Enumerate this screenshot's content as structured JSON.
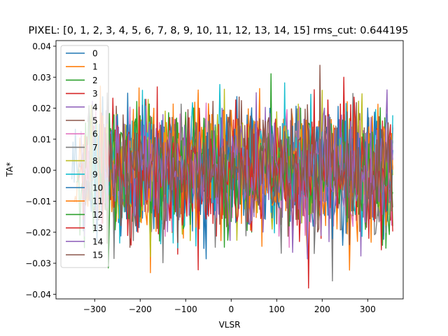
{
  "chart_data": {
    "type": "line",
    "title": "PIXEL: [0, 1, 2, 3, 4, 5, 6, 7, 8, 9, 10, 11, 12, 13, 14, 15]   rms_cut: 0.644195",
    "xlabel": "VLSR",
    "ylabel": "TA*",
    "xlim": [
      -385,
      378
    ],
    "ylim": [
      -0.0415,
      0.0418
    ],
    "x_ticks": [
      -300,
      -200,
      -100,
      0,
      100,
      200,
      300
    ],
    "x_tick_labels": [
      "−300",
      "−200",
      "−100",
      "0",
      "100",
      "200",
      "300"
    ],
    "y_ticks": [
      -0.04,
      -0.03,
      -0.02,
      -0.01,
      0.0,
      0.01,
      0.02,
      0.03,
      0.04
    ],
    "y_tick_labels": [
      "−0.04",
      "−0.03",
      "−0.02",
      "−0.01",
      "0.00",
      "0.01",
      "0.02",
      "0.03",
      "0.04"
    ],
    "grid": false,
    "legend_position": "upper-left",
    "x_range": [
      -350,
      355
    ],
    "noise_rms_approx": 0.0095,
    "series": [
      {
        "name": "0",
        "color": "#1f77b4",
        "x_start": -350,
        "x_end": 355
      },
      {
        "name": "1",
        "color": "#ff7f0e",
        "x_start": -345,
        "x_end": 355
      },
      {
        "name": "2",
        "color": "#2ca02c",
        "x_start": -340,
        "x_end": 355
      },
      {
        "name": "3",
        "color": "#d62728",
        "x_start": -335,
        "x_end": 355
      },
      {
        "name": "4",
        "color": "#9467bd",
        "x_start": -330,
        "x_end": 355
      },
      {
        "name": "5",
        "color": "#8c564b",
        "x_start": -325,
        "x_end": 355
      },
      {
        "name": "6",
        "color": "#e377c2",
        "x_start": -320,
        "x_end": 355
      },
      {
        "name": "7",
        "color": "#7f7f7f",
        "x_start": -315,
        "x_end": 355
      },
      {
        "name": "8",
        "color": "#bcbd22",
        "x_start": -310,
        "x_end": 355
      },
      {
        "name": "9",
        "color": "#17becf",
        "x_start": -305,
        "x_end": 355
      },
      {
        "name": "10",
        "color": "#1f77b4",
        "x_start": -300,
        "x_end": 355
      },
      {
        "name": "11",
        "color": "#ff7f0e",
        "x_start": -295,
        "x_end": 355
      },
      {
        "name": "12",
        "color": "#2ca02c",
        "x_start": -290,
        "x_end": 355
      },
      {
        "name": "13",
        "color": "#d62728",
        "x_start": -285,
        "x_end": 355
      },
      {
        "name": "14",
        "color": "#9467bd",
        "x_start": -280,
        "x_end": 355
      },
      {
        "name": "15",
        "color": "#8c564b",
        "x_start": -275,
        "x_end": 355
      }
    ]
  }
}
